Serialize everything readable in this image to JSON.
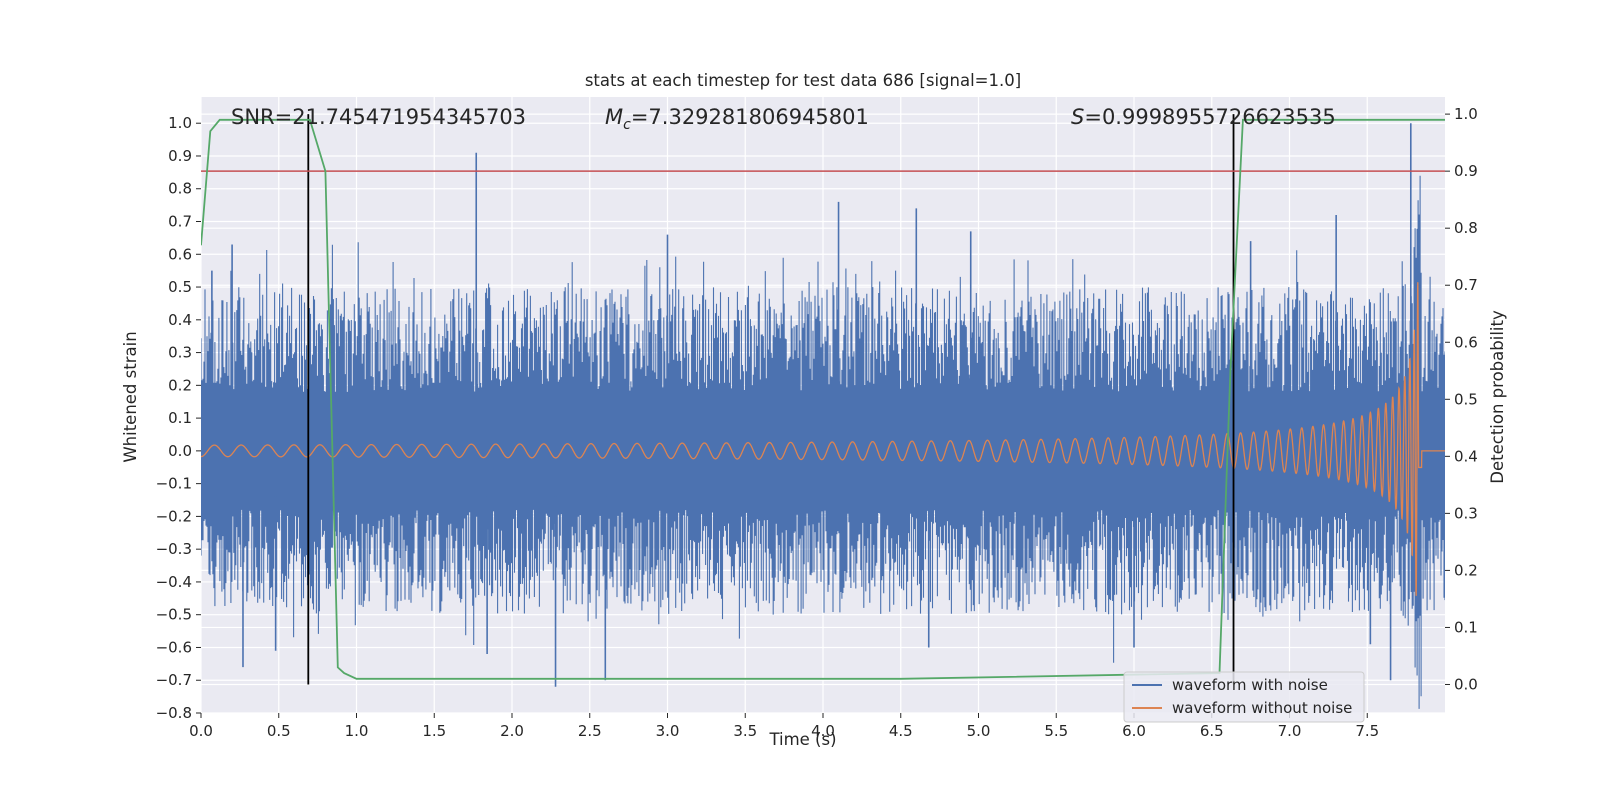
{
  "chart_data": {
    "type": "line",
    "title": "stats at each timestep for test data 686 [signal=1.0]",
    "xlabel": "Time (s)",
    "ylabel": "Whitened strain",
    "ylabel_right": "Detection probability",
    "xlim": [
      0.0,
      8.0
    ],
    "ylim": [
      -0.8,
      1.08
    ],
    "ylim_right": [
      -0.05,
      1.03
    ],
    "xticks": [
      0.0,
      0.5,
      1.0,
      1.5,
      2.0,
      2.5,
      3.0,
      3.5,
      4.0,
      4.5,
      5.0,
      5.5,
      6.0,
      6.5,
      7.0,
      7.5
    ],
    "xtick_labels": [
      "0.0",
      "0.5",
      "1.0",
      "1.5",
      "2.0",
      "2.5",
      "3.0",
      "3.5",
      "4.0",
      "4.5",
      "5.0",
      "5.5",
      "6.0",
      "6.5",
      "7.0",
      "7.5"
    ],
    "yticks": [
      1.0,
      0.9,
      0.8,
      0.7,
      0.6,
      0.5,
      0.4,
      0.3,
      0.2,
      0.1,
      0.0,
      -0.1,
      -0.2,
      -0.3,
      -0.4,
      -0.5,
      -0.6,
      -0.7,
      -0.8
    ],
    "ytick_labels": [
      "1.0",
      "0.9",
      "0.8",
      "0.7",
      "0.6",
      "0.5",
      "0.4",
      "0.3",
      "0.2",
      "0.1",
      "0.0",
      "−0.1",
      "−0.2",
      "−0.3",
      "−0.4",
      "−0.5",
      "−0.6",
      "−0.7",
      "−0.8"
    ],
    "yticks_right": [
      1.0,
      0.9,
      0.8,
      0.7,
      0.6,
      0.5,
      0.4,
      0.3,
      0.2,
      0.1,
      0.0
    ],
    "ytick_labels_right": [
      "1.0",
      "0.9",
      "0.8",
      "0.7",
      "0.6",
      "0.5",
      "0.4",
      "0.3",
      "0.2",
      "0.1",
      "0.0"
    ],
    "annotations": {
      "snr": "SNR=21.745471954345703",
      "mc_symbol": "M",
      "mc_sub": "c",
      "mc_value": "=7.329281806945801",
      "s_symbol": "S",
      "s_value": "=0.9998955726623535"
    },
    "threshold_line": {
      "axis": "right",
      "value": 0.9,
      "color": "#c44e52"
    },
    "vertical_markers": [
      0.69,
      6.64
    ],
    "legend": [
      "waveform with noise",
      "waveform without noise"
    ],
    "legend_position": "lower-right",
    "series": [
      {
        "name": "waveform with noise",
        "color": "#4c72b0",
        "axis": "left",
        "description": "noisy whitened strain, envelope about ±0.5 with spikes",
        "spikes": [
          {
            "t": 0.07,
            "v": 0.55
          },
          {
            "t": 0.2,
            "v": 0.63
          },
          {
            "t": 0.27,
            "v": -0.66
          },
          {
            "t": 0.48,
            "v": -0.61
          },
          {
            "t": 1.77,
            "v": 0.91
          },
          {
            "t": 1.84,
            "v": -0.62
          },
          {
            "t": 2.28,
            "v": -0.72
          },
          {
            "t": 2.6,
            "v": -0.7
          },
          {
            "t": 3.0,
            "v": 0.66
          },
          {
            "t": 4.1,
            "v": 0.76
          },
          {
            "t": 4.6,
            "v": 0.74
          },
          {
            "t": 4.68,
            "v": -0.6
          },
          {
            "t": 4.95,
            "v": 0.67
          },
          {
            "t": 6.0,
            "v": -0.6
          },
          {
            "t": 6.75,
            "v": 0.64
          },
          {
            "t": 7.3,
            "v": 0.72
          },
          {
            "t": 7.52,
            "v": -0.59
          },
          {
            "t": 7.65,
            "v": -0.7
          },
          {
            "t": 7.78,
            "v": 1.0
          }
        ]
      },
      {
        "name": "waveform without noise",
        "color": "#dd8452",
        "axis": "left",
        "description": "chirp signal growing to ±0.52 and merging at t≈7.85 s",
        "merger_time": 7.85,
        "peak_amplitude": 0.52
      },
      {
        "name": "detection probability",
        "color": "#55a868",
        "axis": "right",
        "x": [
          0.0,
          0.06,
          0.12,
          0.2,
          0.6,
          0.7,
          0.8,
          0.88,
          0.92,
          1.0,
          4.3,
          4.5,
          6.55,
          6.62,
          6.7,
          8.0
        ],
        "values": [
          0.77,
          0.97,
          0.99,
          0.99,
          0.99,
          0.99,
          0.9,
          0.03,
          0.02,
          0.01,
          0.01,
          0.01,
          0.02,
          0.55,
          0.99,
          0.99
        ]
      }
    ],
    "colors": {
      "background": "#eaeaf2",
      "grid": "#ffffff",
      "marker": "#000000"
    }
  }
}
